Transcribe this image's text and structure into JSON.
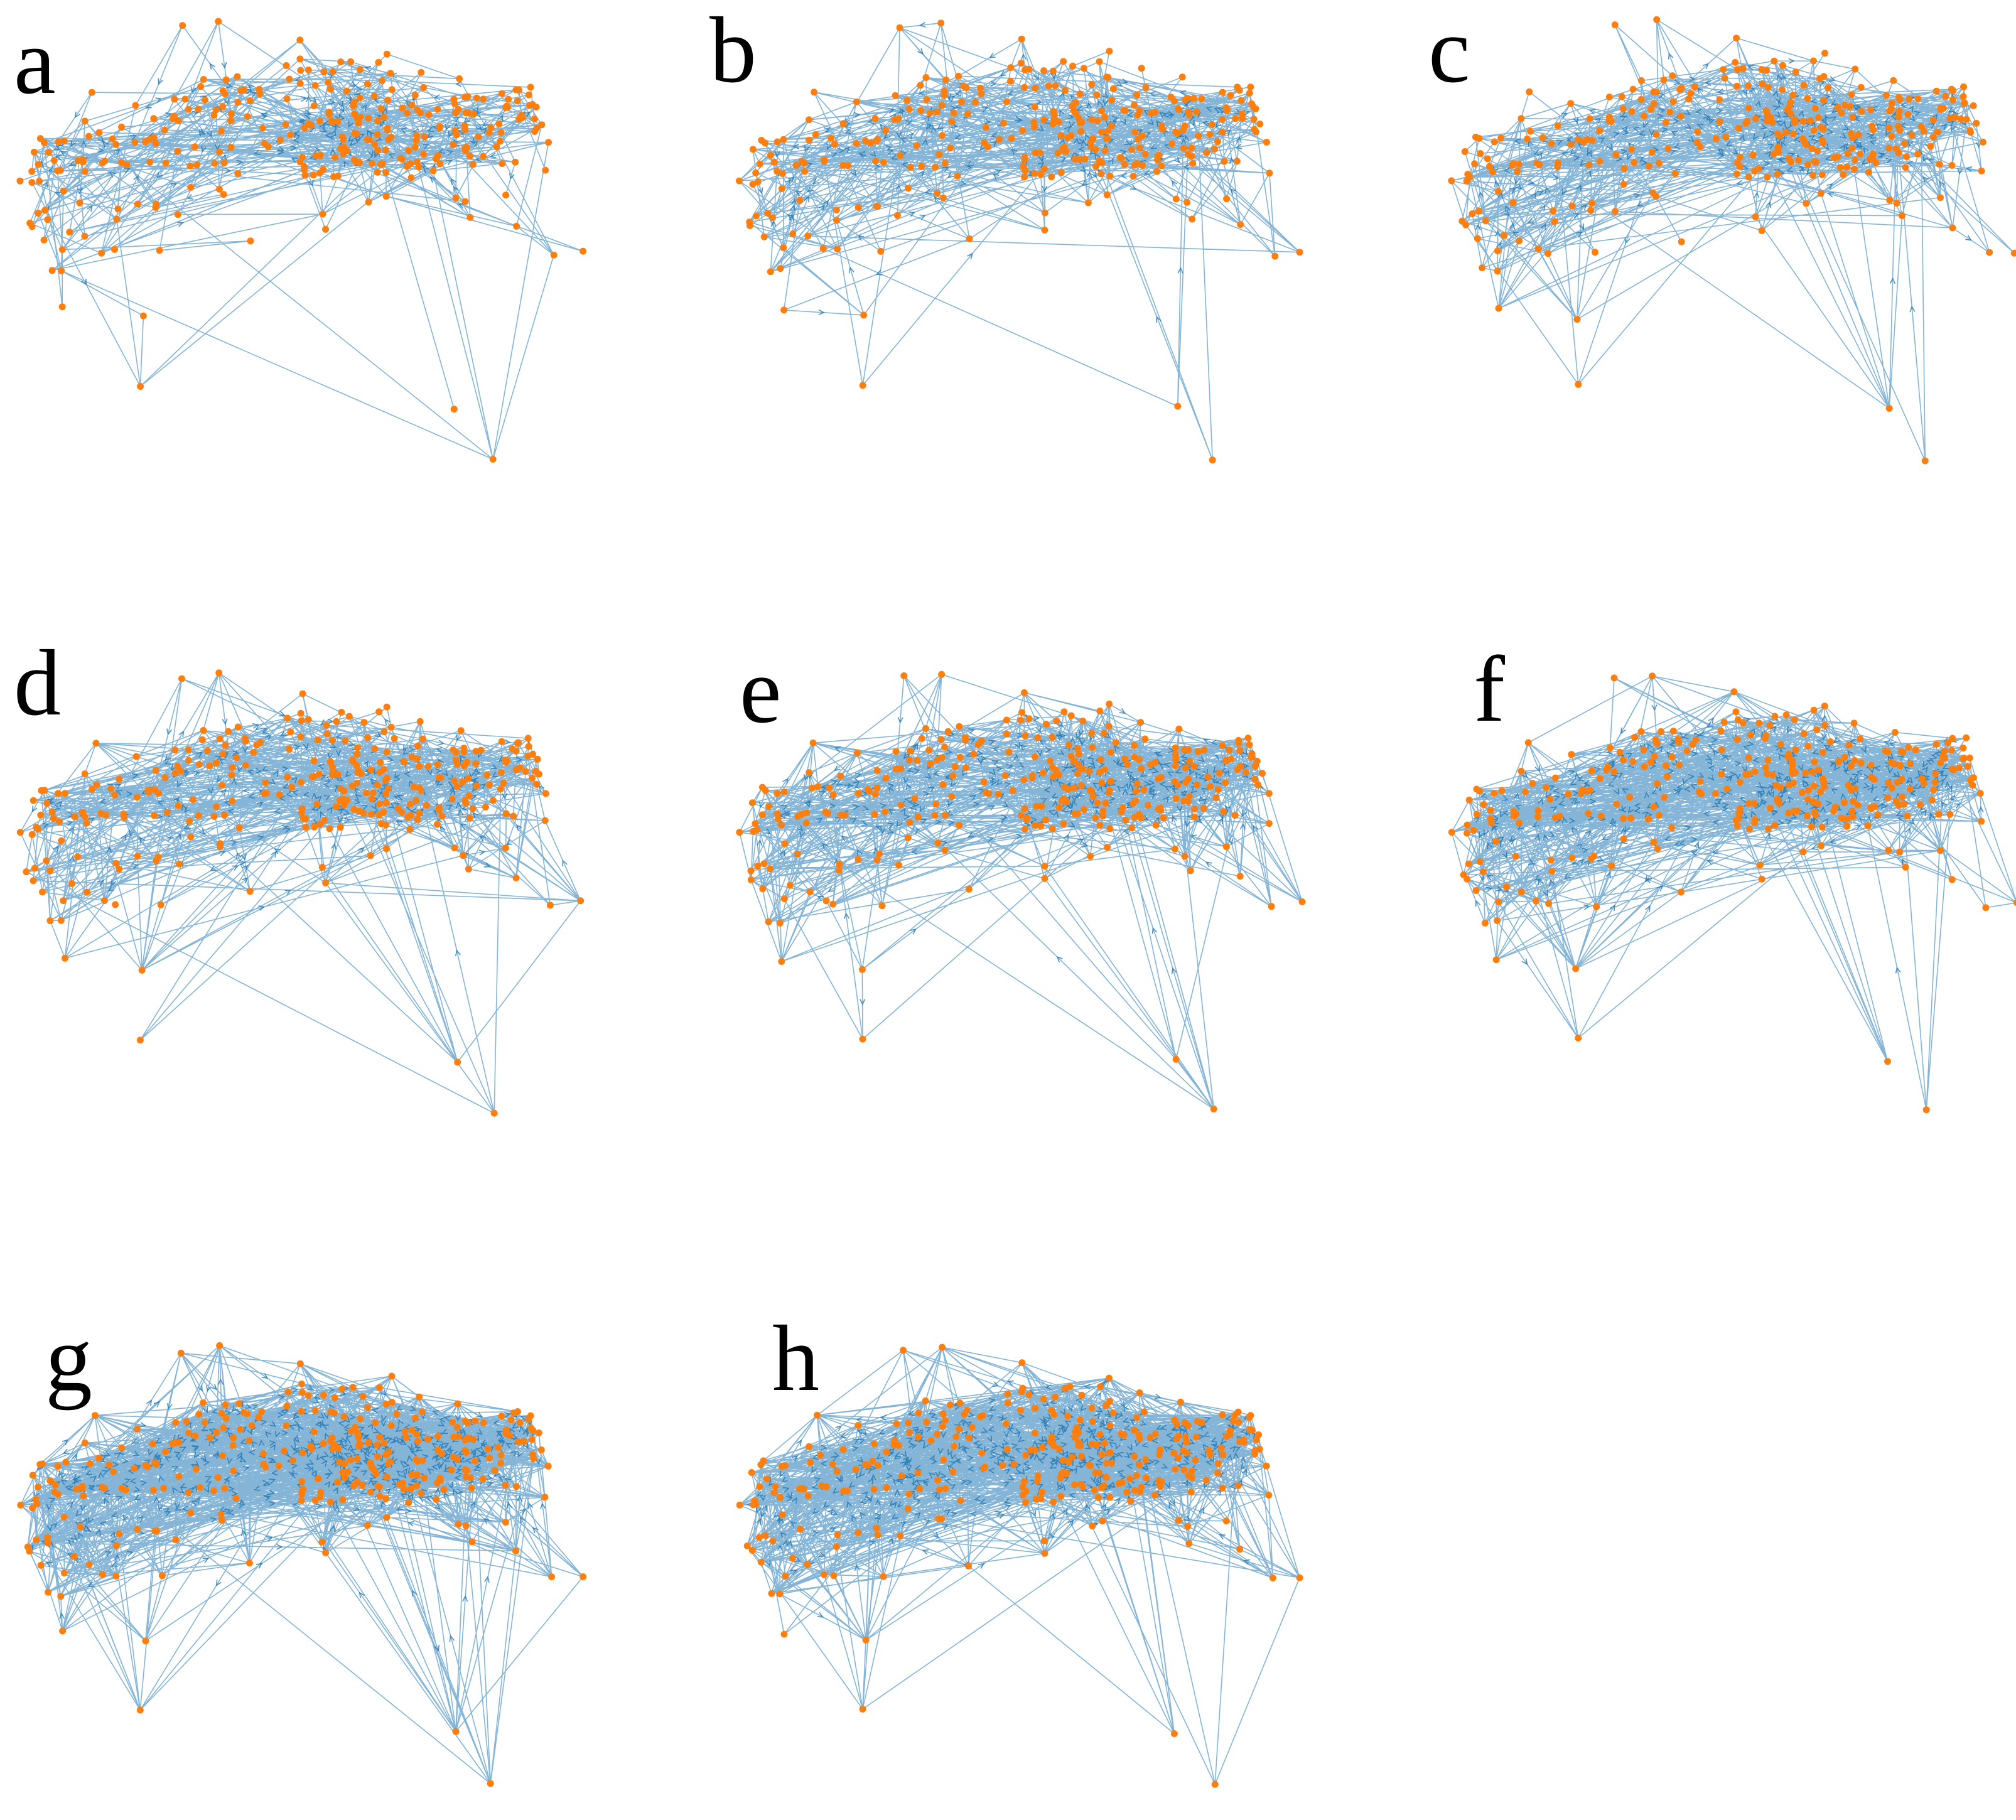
{
  "figure": {
    "panels": [
      {
        "letter": "a"
      },
      {
        "letter": "b"
      },
      {
        "letter": "c"
      },
      {
        "letter": "d"
      },
      {
        "letter": "e"
      },
      {
        "letter": "f"
      },
      {
        "letter": "g"
      },
      {
        "letter": "h"
      }
    ]
  },
  "colors": {
    "edge": "#1f77b4",
    "node": "#ff7f0e",
    "background": "#ffffff",
    "label": "#000000"
  }
}
